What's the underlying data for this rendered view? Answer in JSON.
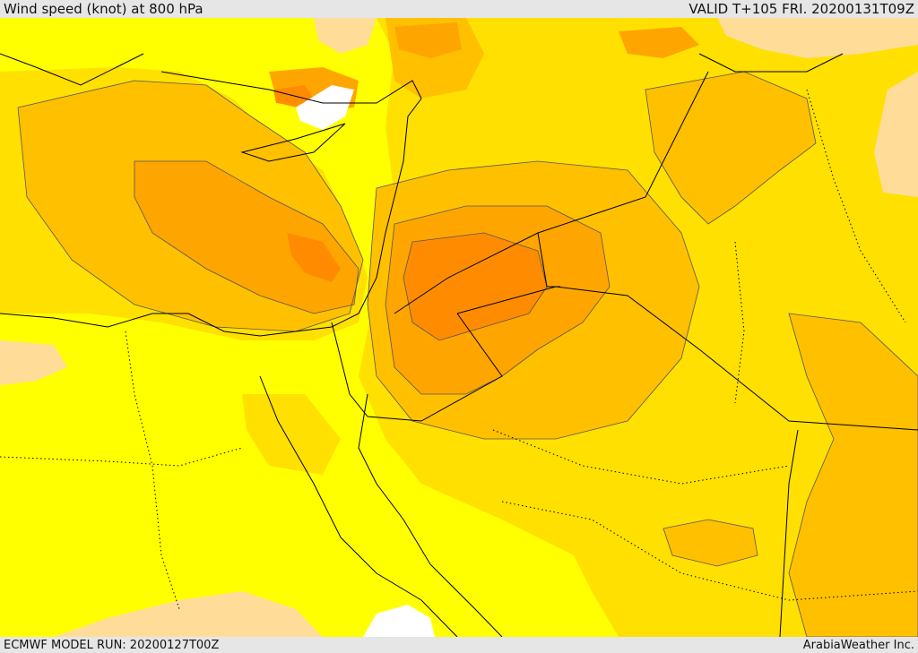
{
  "header": {
    "title": "Wind speed (knot) at 800 hPa",
    "valid": "VALID T+105 FRI. 20200131T09Z"
  },
  "footer": {
    "model_run": "ECMWF MODEL RUN: 20200127T00Z",
    "credit": "ArabiaWeather Inc."
  },
  "colors": {
    "band_0": "#ffffff",
    "band_1": "#ffdd99",
    "band_2": "#ffff00",
    "band_3": "#ffe000",
    "band_4": "#ffc000",
    "band_5": "#ffa500",
    "band_6": "#ff8c00",
    "band_7": "#ff7a10",
    "coastline": "#000000",
    "contour": "#555555"
  }
}
